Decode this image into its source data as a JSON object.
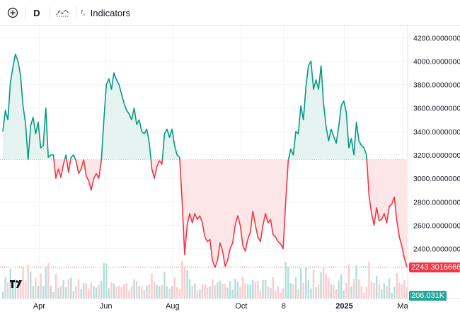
{
  "toolbar": {
    "add_icon": "plus-circle-icon",
    "interval_label": "D",
    "chart_type_icon": "candles-icon",
    "indicators_icon": "fx-icon",
    "indicators_label": "Indicators"
  },
  "price_axis": {
    "labels": [
      "4200.00000000",
      "4000.00000000",
      "3800.00000000",
      "3600.00000000",
      "3400.00000000",
      "3200.00000000",
      "3000.00000000",
      "2800.00000000",
      "2600.00000000",
      "2400.00000000"
    ]
  },
  "time_axis": {
    "labels": [
      "Apr",
      "Jun",
      "Aug",
      "Oct",
      "8",
      "2025",
      "Ma"
    ]
  },
  "last_price_label": "2243.30166667",
  "volume_label": "206.031K",
  "colors": {
    "up": "#089981",
    "down": "#f23645",
    "up_fill": "#e0f2ee",
    "down_fill": "#fde2e4",
    "baseline": "#f23645"
  },
  "chart_data": {
    "type": "area",
    "baseline": 3160,
    "ylim": [
      2180,
      4280
    ],
    "x_ticks": [
      "Apr",
      "Jun",
      "Aug",
      "Oct",
      "8",
      "2025",
      "Ma"
    ],
    "series": [
      {
        "values": [
          3400,
          3580,
          3500,
          3820,
          3950,
          4060,
          4000,
          3880,
          3620,
          3470,
          3160,
          3450,
          3520,
          3380,
          3480,
          3260,
          3280,
          3600,
          3180,
          3200,
          3200,
          3000,
          3080,
          3010,
          3120,
          3200,
          3050,
          3180,
          3200,
          3150,
          3040,
          3080,
          3160,
          3020,
          2980,
          2900,
          3000,
          3040,
          3000,
          3150,
          3500,
          3800,
          3850,
          3760,
          3900,
          3840,
          3800,
          3720,
          3640,
          3580,
          3550,
          3500,
          3600,
          3460,
          3500,
          3400,
          3380,
          3420,
          3300,
          3080,
          3000,
          3100,
          3150,
          3120,
          3380,
          3420,
          3350,
          3420,
          3280,
          3200,
          3180,
          2800,
          2350,
          2600,
          2700,
          2620,
          2700,
          2650,
          2680,
          2620,
          2500,
          2460,
          2480,
          2300,
          2240,
          2300,
          2450,
          2380,
          2250,
          2300,
          2400,
          2450,
          2600,
          2680,
          2600,
          2430,
          2380,
          2480,
          2540,
          2720,
          2600,
          2500,
          2460,
          2600,
          2700,
          2620,
          2650,
          2520,
          2500,
          2460,
          2440,
          2400,
          2800,
          3150,
          3250,
          3200,
          3400,
          3380,
          3620,
          3500,
          3780,
          3960,
          4000,
          3760,
          3840,
          3760,
          3960,
          3640,
          3440,
          3320,
          3420,
          3360,
          3300,
          3440,
          3620,
          3660,
          3560,
          3260,
          3340,
          3200,
          3480,
          3320,
          3280,
          3260,
          3200,
          2850,
          2700,
          2600,
          2750,
          2640,
          2650,
          2700,
          2620,
          2760,
          2780,
          2840,
          2640,
          2500,
          2420,
          2320,
          2243
        ]
      }
    ]
  }
}
